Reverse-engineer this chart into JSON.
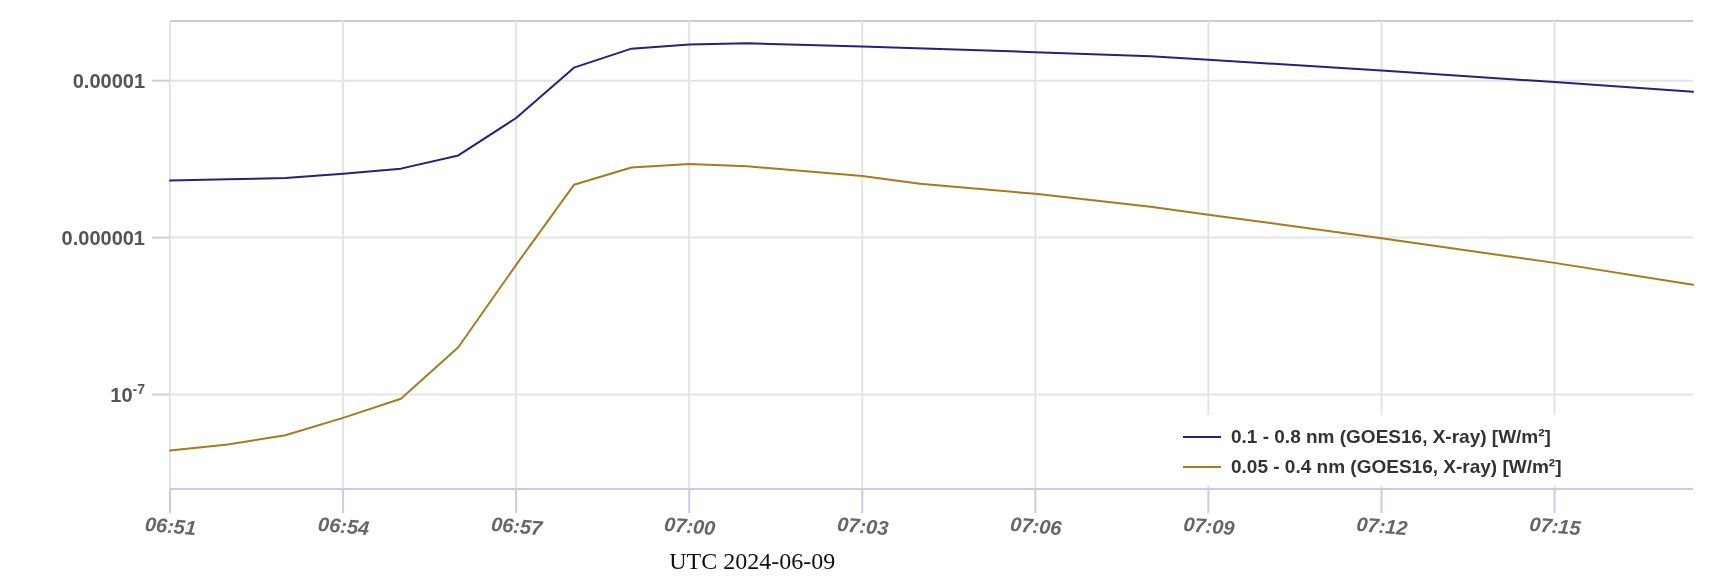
{
  "chart_data": {
    "type": "line",
    "xlabel": "UTC  2024-06-09",
    "log": "y",
    "grid": true,
    "legend": "bottom right",
    "line_style": "solid",
    "marker": "none",
    "xlim": [
      6.85,
      7.29
    ],
    "ylim": [
      2.5e-08,
      2.4e-05
    ],
    "xticks": [
      {
        "value": 6.85,
        "label": "06:51"
      },
      {
        "value": 6.9,
        "label": "06:54"
      },
      {
        "value": 6.95,
        "label": "06:57"
      },
      {
        "value": 7,
        "label": "07:00"
      },
      {
        "value": 7.05,
        "label": "07:03"
      },
      {
        "value": 7.1,
        "label": "07:06"
      },
      {
        "value": 7.15,
        "label": "07:09"
      },
      {
        "value": 7.2,
        "label": "07:12"
      },
      {
        "value": 7.25,
        "label": "07:15"
      }
    ],
    "yticks": [
      {
        "value": 1e-07,
        "label": "10$^{-7}$"
      },
      {
        "value": 1e-06,
        "label": "0.000001"
      },
      {
        "value": 1e-05,
        "label": "0.00001"
      }
    ],
    "series": [
      {
        "name": "0.1 - 0.8 nm (GOES16, X-ray) [W/m²]",
        "color": "#23237f",
        "x": [
          6.85,
          6.8667,
          6.8833,
          6.9,
          6.9167,
          6.9333,
          6.95,
          6.9667,
          6.9833,
          7,
          7.0167,
          7.05,
          7.1,
          7.1333,
          7.15,
          7.2,
          7.25,
          7.29
        ],
        "values": [
          2.31e-06,
          2.35e-06,
          2.4e-06,
          2.55e-06,
          2.75e-06,
          3.34e-06,
          5.78e-06,
          1.21e-05,
          1.6e-05,
          1.7e-05,
          1.73e-05,
          1.65e-05,
          1.52e-05,
          1.43e-05,
          1.36e-05,
          1.16e-05,
          9.8e-06,
          8.5e-06
        ]
      },
      {
        "name": "0.05 - 0.4 nm (GOES16, X-ray) [W/m²]",
        "color": "#a87a1c",
        "x": [
          6.85,
          6.8667,
          6.8833,
          6.9,
          6.9167,
          6.9333,
          6.95,
          6.9667,
          6.9833,
          7,
          7.0167,
          7.05,
          7.0667,
          7.1,
          7.1333,
          7.15,
          7.2,
          7.25,
          7.29
        ],
        "values": [
          4.4e-08,
          4.8e-08,
          5.5e-08,
          7.1e-08,
          9.4e-08,
          2e-07,
          6.7e-07,
          2.17e-06,
          2.8e-06,
          2.94e-06,
          2.85e-06,
          2.47e-06,
          2.2e-06,
          1.9e-06,
          1.57e-06,
          1.4e-06,
          9.9e-07,
          6.9e-07,
          5e-07
        ]
      }
    ]
  }
}
